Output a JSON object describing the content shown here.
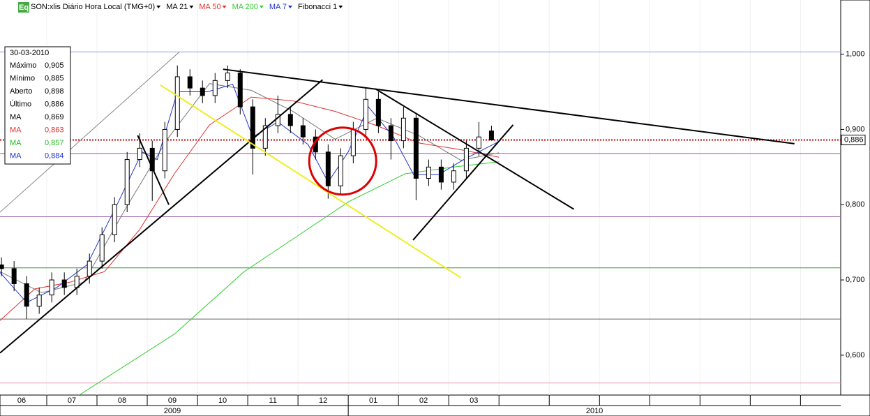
{
  "chart_data": {
    "type": "candlestick",
    "instrument": "SON:xlis Diário Hora Local (TMG+0)",
    "icon": "Eq",
    "fibonacci_label": "Fibonacci 1",
    "xlim": [
      0.07,
      16.8
    ],
    "ylim": [
      0.547,
      1.072
    ],
    "yticks": [
      {
        "value": 1.0,
        "label": "1,000"
      },
      {
        "value": 0.9,
        "label": "0,900"
      },
      {
        "value": 0.8,
        "label": "0,800"
      },
      {
        "value": 0.7,
        "label": "0,700"
      },
      {
        "value": 0.6,
        "label": "0,600"
      }
    ],
    "xticks": [
      {
        "value": 0,
        "label": "06"
      },
      {
        "value": 1,
        "label": "07"
      },
      {
        "value": 2,
        "label": "08"
      },
      {
        "value": 3,
        "label": "09"
      },
      {
        "value": 4,
        "label": "10"
      },
      {
        "value": 5,
        "label": "11"
      },
      {
        "value": 6,
        "label": "12"
      },
      {
        "value": 7,
        "label": "01"
      },
      {
        "value": 8,
        "label": "02"
      },
      {
        "value": 9,
        "label": "03"
      },
      10,
      11,
      12,
      13,
      14,
      15,
      16
    ],
    "years": [
      {
        "value": 0,
        "label": "2009"
      },
      {
        "value": 7,
        "label": "2010"
      }
    ],
    "x": [
      0.1,
      0.35,
      0.6,
      0.85,
      1.1,
      1.35,
      1.6,
      1.85,
      2.1,
      2.35,
      2.6,
      2.85,
      3.1,
      3.35,
      3.6,
      3.85,
      4.1,
      4.35,
      4.6,
      4.85,
      5.1,
      5.35,
      5.6,
      5.85,
      6.1,
      6.35,
      6.6,
      6.85,
      7.1,
      7.35,
      7.6,
      7.85,
      8.1,
      8.35,
      8.6,
      8.85,
      9.1,
      9.35,
      9.6,
      9.85
    ],
    "open": [
      0.72,
      0.715,
      0.695,
      0.665,
      0.68,
      0.7,
      0.69,
      0.705,
      0.725,
      0.76,
      0.8,
      0.86,
      0.875,
      0.845,
      0.9,
      0.97,
      0.955,
      0.945,
      0.965,
      0.975,
      0.93,
      0.875,
      0.905,
      0.92,
      0.905,
      0.89,
      0.87,
      0.825,
      0.865,
      0.9,
      0.94,
      0.905,
      0.885,
      0.915,
      0.835,
      0.85,
      0.83,
      0.845,
      0.875,
      0.898
    ],
    "high": [
      0.73,
      0.725,
      0.705,
      0.69,
      0.71,
      0.71,
      0.715,
      0.735,
      0.77,
      0.81,
      0.87,
      0.895,
      0.885,
      0.91,
      0.985,
      0.98,
      0.965,
      0.975,
      0.985,
      0.98,
      0.94,
      0.915,
      0.945,
      0.93,
      0.915,
      0.9,
      0.88,
      0.875,
      0.91,
      0.955,
      0.95,
      0.915,
      0.93,
      0.92,
      0.86,
      0.86,
      0.855,
      0.885,
      0.91,
      0.905
    ],
    "low": [
      0.705,
      0.685,
      0.648,
      0.655,
      0.67,
      0.68,
      0.68,
      0.695,
      0.715,
      0.75,
      0.79,
      0.85,
      0.805,
      0.835,
      0.89,
      0.945,
      0.935,
      0.935,
      0.955,
      0.92,
      0.84,
      0.865,
      0.895,
      0.895,
      0.88,
      0.86,
      0.808,
      0.815,
      0.855,
      0.89,
      0.895,
      0.86,
      0.875,
      0.806,
      0.825,
      0.82,
      0.82,
      0.835,
      0.865,
      0.885
    ],
    "close": [
      0.715,
      0.695,
      0.665,
      0.68,
      0.7,
      0.69,
      0.705,
      0.725,
      0.76,
      0.8,
      0.86,
      0.875,
      0.845,
      0.9,
      0.97,
      0.955,
      0.945,
      0.965,
      0.975,
      0.93,
      0.875,
      0.905,
      0.92,
      0.905,
      0.89,
      0.87,
      0.825,
      0.865,
      0.9,
      0.94,
      0.905,
      0.885,
      0.915,
      0.835,
      0.85,
      0.83,
      0.845,
      0.875,
      0.89,
      0.886
    ],
    "series": [
      {
        "name": "MA 21",
        "color": "#777777",
        "x": [
          0.07,
          0.9,
          1.74,
          2.57,
          3.4,
          4.24,
          5.07,
          5.9,
          6.74,
          7.57,
          8.4,
          9.24,
          10.0
        ],
        "values": [
          0.711,
          0.683,
          0.697,
          0.795,
          0.887,
          0.961,
          0.952,
          0.924,
          0.887,
          0.915,
          0.892,
          0.859,
          0.869
        ]
      },
      {
        "name": "MA 50",
        "color": "#e03030",
        "x": [
          0.07,
          0.76,
          1.46,
          2.15,
          2.85,
          3.54,
          4.24,
          5.07,
          5.9,
          6.74,
          7.57,
          8.4,
          9.24,
          10.0
        ],
        "values": [
          0.646,
          0.688,
          0.697,
          0.711,
          0.767,
          0.841,
          0.906,
          0.943,
          0.938,
          0.924,
          0.905,
          0.882,
          0.873,
          0.863
        ]
      },
      {
        "name": "MA 200",
        "color": "#33cc33",
        "x": [
          1.67,
          3.54,
          4.93,
          7.01,
          8.13,
          9.1,
          10.0
        ],
        "values": [
          0.548,
          0.628,
          0.711,
          0.804,
          0.841,
          0.85,
          0.857
        ]
      },
      {
        "name": "MA 7",
        "color": "#2233cc",
        "x": [
          0.07,
          0.6,
          1.2,
          1.8,
          2.4,
          2.9,
          3.2,
          3.6,
          4.2,
          4.7,
          5.1,
          5.6,
          6.2,
          6.6,
          7.0,
          7.4,
          7.9,
          8.3,
          8.8,
          9.3,
          10.0
        ],
        "values": [
          0.71,
          0.67,
          0.69,
          0.72,
          0.8,
          0.87,
          0.86,
          0.95,
          0.95,
          0.96,
          0.89,
          0.91,
          0.88,
          0.83,
          0.87,
          0.93,
          0.89,
          0.84,
          0.84,
          0.86,
          0.884
        ]
      }
    ],
    "hlines": [
      {
        "value": 1.003,
        "color": "#8899ee"
      },
      {
        "value": 0.868,
        "color": "#cc33cc"
      },
      {
        "value": 0.784,
        "color": "#9966aa"
      },
      {
        "value": 0.716,
        "color": "#339933"
      },
      {
        "value": 0.648,
        "color": "#666666"
      },
      {
        "value": 0.563,
        "color": "#ee99bb"
      }
    ],
    "last_price": {
      "value": 0.886,
      "label": "0,886",
      "color": "#cc0000"
    },
    "trendlines": [
      {
        "x": [
          0.07,
          6.49
        ],
        "y": [
          0.603,
          0.966
        ],
        "color": "#000000",
        "width": 2
      },
      {
        "x": [
          4.51,
          15.88
        ],
        "y": [
          0.98,
          0.881
        ],
        "color": "#000000",
        "width": 2
      },
      {
        "x": [
          7.54,
          11.49
        ],
        "y": [
          0.954,
          0.794
        ],
        "color": "#000000",
        "width": 2
      },
      {
        "x": [
          8.29,
          10.28
        ],
        "y": [
          0.753,
          0.906
        ],
        "color": "#000000",
        "width": 2
      },
      {
        "x": [
          2.81,
          3.43
        ],
        "y": [
          0.892,
          0.8
        ],
        "color": "#000000",
        "width": 2
      },
      {
        "x": [
          3.26,
          9.24
        ],
        "y": [
          0.959,
          0.703
        ],
        "color": "#eeee22",
        "width": 2
      },
      {
        "x": [
          0.07,
          3.64
        ],
        "y": [
          0.79,
          1.003
        ],
        "color": "#888888",
        "width": 1
      }
    ],
    "circle": {
      "x": 6.89,
      "y": 0.858,
      "color": "#dd0000"
    },
    "info": {
      "date": "30-03-2010",
      "rows": [
        {
          "label": "Máximo",
          "value": "0,905",
          "color": "#000000"
        },
        {
          "label": "Mínimo",
          "value": "0,885",
          "color": "#000000"
        },
        {
          "label": "Aberto",
          "value": "0,898",
          "color": "#000000"
        },
        {
          "label": "Último",
          "value": "0,886",
          "color": "#000000"
        },
        {
          "label": "MA",
          "value": "0,869",
          "color": "#000000"
        },
        {
          "label": "MA",
          "value": "0,863",
          "color": "#e03030"
        },
        {
          "label": "MA",
          "value": "0,857",
          "color": "#22bb22"
        },
        {
          "label": "MA",
          "value": "0,884",
          "color": "#2233cc"
        }
      ]
    }
  }
}
